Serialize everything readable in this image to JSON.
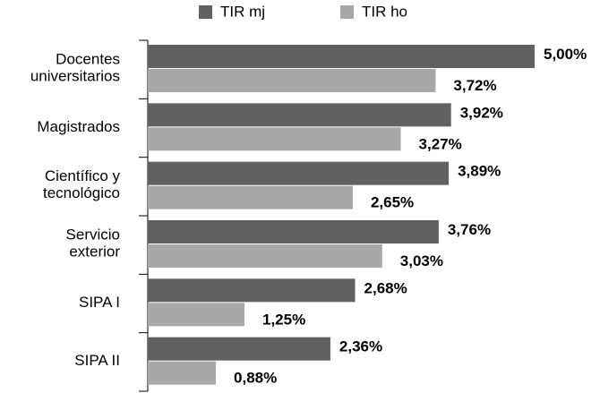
{
  "chart_data": {
    "type": "bar",
    "orientation": "horizontal",
    "categories": [
      "Docentes\nuniversitarios",
      "Magistrados",
      "Científico y\ntecnológico",
      "Servicio\nexterior",
      "SIPA I",
      "SIPA II"
    ],
    "series": [
      {
        "name": "TIR mj",
        "color": "#616161",
        "values": [
          5.0,
          3.92,
          3.89,
          3.76,
          2.68,
          2.36
        ],
        "value_labels": [
          "5,00%",
          "3,92%",
          "3,89%",
          "3,76%",
          "2,68%",
          "2,36%"
        ]
      },
      {
        "name": "TIR ho",
        "color": "#a8a8a8",
        "values": [
          3.72,
          3.27,
          2.65,
          3.03,
          1.25,
          0.88
        ],
        "value_labels": [
          "3,72%",
          "3,27%",
          "2,65%",
          "3,03%",
          "1,25%",
          "0,88%"
        ]
      }
    ],
    "xlim": [
      0,
      5
    ],
    "legend": "top"
  }
}
